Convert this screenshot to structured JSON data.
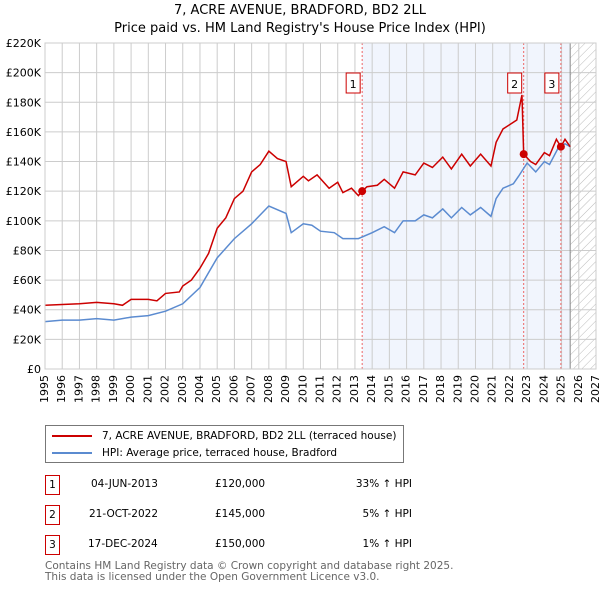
{
  "chart_data": {
    "type": "line",
    "title": "7, ACRE AVENUE, BRADFORD, BD2 2LL",
    "subtitle": "Price paid vs. HM Land Registry's House Price Index (HPI)",
    "xlim": [
      1995,
      2027
    ],
    "ylim": [
      0,
      220000
    ],
    "x_ticks": [
      "1995",
      "1996",
      "1997",
      "1998",
      "1999",
      "2000",
      "2001",
      "2002",
      "2003",
      "2004",
      "2005",
      "2006",
      "2007",
      "2008",
      "2009",
      "2010",
      "2011",
      "2012",
      "2013",
      "2014",
      "2015",
      "2016",
      "2017",
      "2018",
      "2019",
      "2020",
      "2021",
      "2022",
      "2023",
      "2024",
      "2025",
      "2026",
      "2027"
    ],
    "y_ticks": [
      "£0",
      "£20K",
      "£40K",
      "£60K",
      "£80K",
      "£100K",
      "£120K",
      "£140K",
      "£160K",
      "£180K",
      "£200K",
      "£220K"
    ],
    "grid": true,
    "shaded_range": [
      2013.42,
      2025.5
    ],
    "hatched_range": [
      2025.5,
      2027
    ],
    "series": [
      {
        "name": "7, ACRE AVENUE, BRADFORD, BD2 2LL (terraced house)",
        "color": "#cc0000",
        "x": [
          1995,
          1996,
          1997,
          1998,
          1999,
          1999.5,
          2000,
          2001,
          2001.5,
          2002,
          2002.8,
          2003,
          2003.5,
          2004,
          2004.5,
          2005,
          2005.5,
          2006,
          2006.5,
          2007,
          2007.5,
          2008,
          2008.5,
          2009,
          2009.3,
          2010,
          2010.3,
          2010.8,
          2011.5,
          2012,
          2012.3,
          2012.8,
          2013.2,
          2013.42,
          2013.7,
          2014.3,
          2014.7,
          2015.3,
          2015.8,
          2016.5,
          2017,
          2017.5,
          2018.1,
          2018.6,
          2019.2,
          2019.7,
          2020.3,
          2020.9,
          2021.2,
          2021.6,
          2022,
          2022.4,
          2022.7,
          2022.8,
          2023.2,
          2023.5,
          2024,
          2024.3,
          2024.7,
          2024.96,
          2025.2,
          2025.5
        ],
        "y": [
          43000,
          43500,
          44000,
          45000,
          44000,
          43000,
          47000,
          47000,
          46000,
          51000,
          52000,
          56000,
          60000,
          68000,
          78000,
          95000,
          102000,
          115000,
          120000,
          133000,
          138000,
          147000,
          142000,
          140000,
          123000,
          130000,
          127000,
          131000,
          122000,
          126000,
          119000,
          122000,
          117000,
          120000,
          123000,
          124000,
          128000,
          122000,
          133000,
          131000,
          139000,
          136000,
          143000,
          135000,
          145000,
          137000,
          145000,
          137000,
          153000,
          162000,
          165000,
          168000,
          185000,
          145000,
          140000,
          138000,
          146000,
          144000,
          155000,
          150000,
          155000,
          150000
        ]
      },
      {
        "name": "HPI: Average price, terraced house, Bradford",
        "color": "#5b8bd0",
        "x": [
          1995,
          1996,
          1997,
          1998,
          1999,
          2000,
          2001,
          2002,
          2003,
          2004,
          2004.5,
          2005,
          2006,
          2007,
          2008,
          2009,
          2009.3,
          2010,
          2010.5,
          2011,
          2011.8,
          2012.3,
          2013.2,
          2014,
          2014.7,
          2015.3,
          2015.8,
          2016.5,
          2017,
          2017.5,
          2018.1,
          2018.6,
          2019.2,
          2019.7,
          2020.3,
          2020.9,
          2021.2,
          2021.6,
          2022.2,
          2022.5,
          2023,
          2023.5,
          2024,
          2024.3,
          2024.8,
          2025.2,
          2025.5
        ],
        "y": [
          32000,
          33000,
          33000,
          34000,
          33000,
          35000,
          36000,
          39000,
          44000,
          55000,
          65000,
          75000,
          88000,
          98000,
          110000,
          105000,
          92000,
          98000,
          97000,
          93000,
          92000,
          88000,
          88000,
          92000,
          96000,
          92000,
          100000,
          100000,
          104000,
          102000,
          108000,
          102000,
          109000,
          104000,
          109000,
          103000,
          115000,
          122000,
          125000,
          130000,
          139000,
          133000,
          140000,
          138000,
          149000,
          152000,
          150000
        ]
      }
    ],
    "sales": [
      {
        "label": "1",
        "x": 2013.42,
        "price": 120000,
        "date": "04-JUN-2013",
        "price_text": "£120,000",
        "hpi": "33% ↑ HPI"
      },
      {
        "label": "2",
        "x": 2022.8,
        "price": 145000,
        "date": "21-OCT-2022",
        "price_text": "£145,000",
        "hpi": "5% ↑ HPI"
      },
      {
        "label": "3",
        "x": 2024.96,
        "price": 150000,
        "date": "17-DEC-2024",
        "price_text": "£150,000",
        "hpi": "1% ↑ HPI"
      }
    ]
  },
  "footer": {
    "line1": "Contains HM Land Registry data © Crown copyright and database right 2025.",
    "line2": "This data is licensed under the Open Government Licence v3.0."
  }
}
